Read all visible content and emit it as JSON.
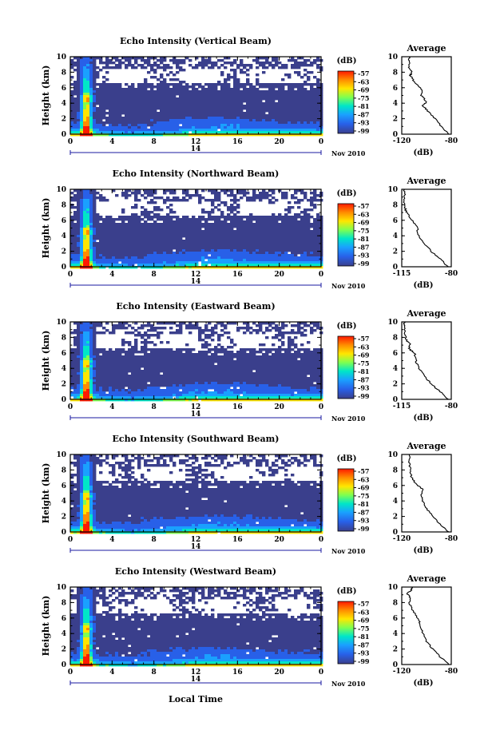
{
  "figure": {
    "xlabel": "Local Time",
    "colors": {
      "background": "#ffffff",
      "no_echo": "#ffffff",
      "axis": "#000000",
      "date_marker": "#1a1aa0"
    }
  },
  "chart_data": [
    {
      "type": "heatmap",
      "title": "Echo Intensity (Vertical Beam)",
      "ylabel": "Height (km)",
      "xlim": [
        0,
        24
      ],
      "ylim": [
        0,
        10
      ],
      "x_ticks": [
        "0",
        "4",
        "8",
        "12",
        "16",
        "20",
        "0"
      ],
      "y_ticks": [
        "0",
        "2",
        "4",
        "6",
        "8",
        "10"
      ],
      "date_marker": {
        "day": "14",
        "month_year": "Nov 2010"
      },
      "colorbar": {
        "label": "(dB)",
        "ticks": [
          "-57",
          "-63",
          "-69",
          "-75",
          "-81",
          "-87",
          "-93",
          "-99"
        ],
        "colors": [
          "#ff1a00",
          "#ff8c00",
          "#ffe600",
          "#7fff50",
          "#00e6c8",
          "#1aa0ff",
          "#2860e8",
          "#3a3f8c"
        ]
      },
      "average": {
        "title": "Average",
        "xlabel": "(dB)",
        "xlim": [
          -120,
          -80
        ],
        "x_ticks": [
          "-120",
          "-80"
        ],
        "height_km": [
          0,
          1,
          2,
          3,
          3.7,
          4.2,
          5,
          5.8,
          6.8,
          7.6,
          8,
          8.5,
          9.2,
          10
        ],
        "db": [
          -82,
          -88,
          -93,
          -99,
          -103,
          -100,
          -104,
          -104,
          -110,
          -113,
          -112,
          -114,
          -114,
          -114
        ]
      }
    },
    {
      "type": "heatmap",
      "title": "Echo Intensity (Northward Beam)",
      "ylabel": "Height (km)",
      "xlim": [
        0,
        24
      ],
      "ylim": [
        0,
        10
      ],
      "x_ticks": [
        "0",
        "4",
        "8",
        "12",
        "16",
        "20",
        "0"
      ],
      "y_ticks": [
        "0",
        "2",
        "4",
        "6",
        "8",
        "10"
      ],
      "date_marker": {
        "day": "14",
        "month_year": "Nov 2010"
      },
      "colorbar": {
        "label": "(dB)",
        "ticks": [
          "-57",
          "-63",
          "-69",
          "-75",
          "-81",
          "-87",
          "-93",
          "-99"
        ],
        "colors": [
          "#ff1a00",
          "#ff8c00",
          "#ffe600",
          "#7fff50",
          "#00e6c8",
          "#1aa0ff",
          "#2860e8",
          "#3a3f8c"
        ]
      },
      "average": {
        "title": "Average",
        "xlabel": "(dB)",
        "xlim": [
          -115,
          -80
        ],
        "x_ticks": [
          "-115",
          "-80"
        ],
        "height_km": [
          0,
          1,
          2,
          3,
          4,
          5,
          5.8,
          6.5,
          7.2,
          8,
          9,
          10
        ],
        "db": [
          -82,
          -88,
          -94,
          -99,
          -103,
          -104,
          -107,
          -110,
          -112,
          -113,
          -113,
          -113
        ]
      }
    },
    {
      "type": "heatmap",
      "title": "Echo Intensity (Eastward Beam)",
      "ylabel": "Height (km)",
      "xlim": [
        0,
        24
      ],
      "ylim": [
        0,
        10
      ],
      "x_ticks": [
        "0",
        "4",
        "8",
        "12",
        "16",
        "20",
        "0"
      ],
      "y_ticks": [
        "0",
        "2",
        "4",
        "6",
        "8",
        "10"
      ],
      "date_marker": {
        "day": "14",
        "month_year": "Nov 2010"
      },
      "colorbar": {
        "label": "(dB)",
        "ticks": [
          "-57",
          "-63",
          "-69",
          "-75",
          "-81",
          "-87",
          "-93",
          "-99"
        ],
        "colors": [
          "#ff1a00",
          "#ff8c00",
          "#ffe600",
          "#7fff50",
          "#00e6c8",
          "#1aa0ff",
          "#2860e8",
          "#3a3f8c"
        ]
      },
      "average": {
        "title": "Average",
        "xlabel": "(dB)",
        "xlim": [
          -115,
          -80
        ],
        "x_ticks": [
          "-115",
          "-80"
        ],
        "height_km": [
          0,
          1,
          2,
          3,
          4,
          5,
          6,
          6.5,
          7,
          7.8,
          8.5,
          9.5,
          10
        ],
        "db": [
          -82,
          -88,
          -94,
          -99,
          -103,
          -105,
          -106,
          -110,
          -109,
          -112,
          -113,
          -113,
          -113
        ]
      }
    },
    {
      "type": "heatmap",
      "title": "Echo Intensity (Southward Beam)",
      "ylabel": "Height (km)",
      "xlim": [
        0,
        24
      ],
      "ylim": [
        0,
        10
      ],
      "x_ticks": [
        "0",
        "4",
        "8",
        "12",
        "16",
        "20",
        "0"
      ],
      "y_ticks": [
        "0",
        "2",
        "4",
        "6",
        "8",
        "10"
      ],
      "date_marker": {
        "day": "14",
        "month_year": "Nov 2010"
      },
      "colorbar": {
        "label": "(dB)",
        "ticks": [
          "-57",
          "-63",
          "-69",
          "-75",
          "-81",
          "-87",
          "-93",
          "-99"
        ],
        "colors": [
          "#ff1a00",
          "#ff8c00",
          "#ffe600",
          "#7fff50",
          "#00e6c8",
          "#1aa0ff",
          "#2860e8",
          "#3a3f8c"
        ]
      },
      "average": {
        "title": "Average",
        "xlabel": "(dB)",
        "xlim": [
          -120,
          -80
        ],
        "x_ticks": [
          "-120",
          "-80"
        ],
        "height_km": [
          0,
          1,
          2,
          3,
          4,
          4.8,
          5.5,
          6,
          6.5,
          7,
          8,
          9,
          10
        ],
        "db": [
          -82,
          -89,
          -95,
          -100,
          -103,
          -104,
          -103,
          -107,
          -110,
          -112,
          -113,
          -114,
          -114
        ]
      }
    },
    {
      "type": "heatmap",
      "title": "Echo Intensity (Westward Beam)",
      "ylabel": "Height (km)",
      "xlim": [
        0,
        24
      ],
      "ylim": [
        0,
        10
      ],
      "x_ticks": [
        "0",
        "4",
        "8",
        "12",
        "16",
        "20",
        "0"
      ],
      "y_ticks": [
        "0",
        "2",
        "4",
        "6",
        "8",
        "10"
      ],
      "date_marker": {
        "day": "14",
        "month_year": "Nov 2010"
      },
      "colorbar": {
        "label": "(dB)",
        "ticks": [
          "-57",
          "-63",
          "-69",
          "-75",
          "-81",
          "-87",
          "-93",
          "-99"
        ],
        "colors": [
          "#ff1a00",
          "#ff8c00",
          "#ffe600",
          "#7fff50",
          "#00e6c8",
          "#1aa0ff",
          "#2860e8",
          "#3a3f8c"
        ]
      },
      "average": {
        "title": "Average",
        "xlabel": "(dB)",
        "xlim": [
          -120,
          -80
        ],
        "x_ticks": [
          "-120",
          "-80"
        ],
        "height_km": [
          0,
          1,
          2,
          3,
          4,
          5,
          5.8,
          6.5,
          7.2,
          8,
          8.6,
          9.2,
          9.6,
          10
        ],
        "db": [
          -82,
          -89,
          -95,
          -100,
          -103,
          -105,
          -106,
          -109,
          -112,
          -114,
          -113,
          -116,
          -112,
          -112
        ]
      }
    }
  ]
}
